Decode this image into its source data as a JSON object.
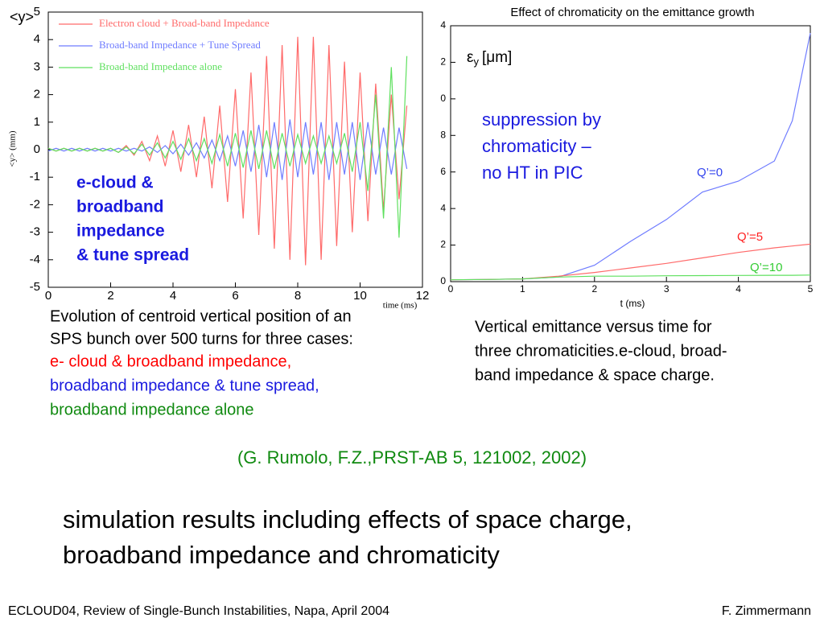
{
  "chart_data": [
    {
      "type": "line",
      "corner_label": "<y>",
      "ylabel": "<y> (mm)",
      "xlabel": "time (ms)",
      "xlim": [
        0,
        12
      ],
      "xticks": [
        0,
        2,
        4,
        6,
        8,
        10,
        12
      ],
      "ylim": [
        -5,
        5
      ],
      "yticks": [
        -5,
        -4,
        -3,
        -2,
        -1,
        0,
        1,
        2,
        3,
        4,
        5
      ],
      "legend": "top-left",
      "x": [
        0,
        0.25,
        0.5,
        0.75,
        1,
        1.25,
        1.5,
        1.75,
        2,
        2.25,
        2.5,
        2.75,
        3,
        3.25,
        3.5,
        3.75,
        4,
        4.25,
        4.5,
        4.75,
        5,
        5.25,
        5.5,
        5.75,
        6,
        6.25,
        6.5,
        6.75,
        7,
        7.25,
        7.5,
        7.75,
        8,
        8.25,
        8.5,
        8.75,
        9,
        9.25,
        9.5,
        9.75,
        10,
        10.25,
        10.5,
        10.75,
        11,
        11.25,
        11.5
      ],
      "series": [
        {
          "name": "Electron cloud + Broad-band Impedance",
          "color": "#ff6a6a",
          "values": [
            0.05,
            -0.05,
            0.05,
            -0.05,
            0.05,
            -0.05,
            0.05,
            -0.05,
            0.05,
            -0.1,
            0.15,
            -0.2,
            0.3,
            -0.4,
            0.5,
            -0.6,
            0.7,
            -0.8,
            0.9,
            -1.0,
            1.2,
            -1.4,
            1.6,
            -1.9,
            2.2,
            -2.5,
            2.8,
            -3.1,
            3.4,
            -3.6,
            3.8,
            -4.0,
            4.1,
            -4.2,
            4.1,
            -4.0,
            3.8,
            -3.5,
            3.2,
            -3.0,
            2.8,
            -2.6,
            2.4,
            -2.2,
            2.0,
            -1.8,
            1.6
          ]
        },
        {
          "name": "Broad-band Impedance + Tune Spread",
          "color": "#6f7cff",
          "values": [
            -0.05,
            0.05,
            -0.05,
            0.05,
            -0.05,
            0.05,
            -0.05,
            0.05,
            -0.05,
            0.05,
            -0.05,
            0.05,
            -0.05,
            0.1,
            -0.1,
            0.15,
            -0.15,
            0.2,
            -0.2,
            0.25,
            -0.3,
            0.35,
            -0.4,
            0.5,
            -0.6,
            0.7,
            -0.8,
            0.9,
            -1.0,
            1.0,
            -1.1,
            1.1,
            -1.0,
            1.0,
            -0.9,
            1.0,
            -1.1,
            1.0,
            -0.9,
            1.0,
            -1.1,
            1.0,
            -0.9,
            0.8,
            -0.9,
            0.8,
            -0.7
          ]
        },
        {
          "name": "Broad-band Impedance alone",
          "color": "#5fe05f",
          "values": [
            0.05,
            -0.05,
            0.05,
            -0.05,
            0.05,
            -0.05,
            0.05,
            -0.05,
            0.05,
            -0.1,
            0.1,
            -0.15,
            0.2,
            -0.2,
            0.25,
            -0.3,
            0.3,
            -0.35,
            0.4,
            -0.4,
            0.4,
            -0.5,
            0.55,
            -0.6,
            0.6,
            -0.65,
            0.7,
            -0.7,
            0.7,
            -0.7,
            0.6,
            -0.6,
            0.55,
            -0.5,
            0.5,
            -0.5,
            0.5,
            -0.5,
            0.6,
            -0.8,
            1.0,
            -1.5,
            2.0,
            -2.5,
            3.0,
            -3.2,
            3.4
          ]
        }
      ],
      "annotation": [
        "e-cloud &",
        "broadband",
        "impedance",
        "& tune spread"
      ]
    },
    {
      "type": "line",
      "title": "Effect of chromaticity on the emittance growth",
      "xlabel": "t (ms)",
      "ylabel_symbol": "ε",
      "ylabel_subscript": "y",
      "ylabel_unit": "[μm]",
      "xlim": [
        0,
        5
      ],
      "xticks": [
        0,
        1,
        2,
        3,
        4,
        5
      ],
      "ylim": [
        0,
        14
      ],
      "yticks": [
        0,
        2,
        4,
        6,
        8,
        {
          "value": 10,
          "label": "0"
        },
        {
          "value": 12,
          "label": "2"
        },
        {
          "value": 14,
          "label": "4"
        }
      ],
      "x": [
        0,
        0.5,
        1,
        1.5,
        2,
        2.5,
        3,
        3.5,
        4,
        4.5,
        4.75,
        5
      ],
      "series": [
        {
          "name": "Q’=0",
          "color": "#6f7cff",
          "values": [
            0.1,
            0.12,
            0.15,
            0.25,
            0.9,
            2.2,
            3.4,
            4.9,
            5.5,
            6.6,
            8.8,
            13.6
          ]
        },
        {
          "name": "Q’=5",
          "color": "#ff6a6a",
          "values": [
            0.1,
            0.12,
            0.15,
            0.3,
            0.5,
            0.75,
            1.0,
            1.3,
            1.6,
            1.85,
            1.95,
            2.05
          ]
        },
        {
          "name": "Q’=10",
          "color": "#5fe05f",
          "values": [
            0.1,
            0.12,
            0.15,
            0.25,
            0.3,
            0.3,
            0.32,
            0.33,
            0.34,
            0.35,
            0.35,
            0.36
          ]
        }
      ],
      "annotation": [
        "suppression by",
        "chromaticity –",
        "no HT in PIC"
      ]
    }
  ],
  "caption_left": [
    "Evolution of centroid vertical position of an",
    "SPS bunch over 500 turns for three cases:",
    "e- cloud & broadband impedance,",
    "broadband impedance & tune spread,",
    "broadband impedance alone"
  ],
  "caption_right": [
    "Vertical emittance versus time for",
    "three chromaticities.e-cloud,  broad-",
    "band impedance & space charge."
  ],
  "citation": "(G. Rumolo, F.Z.,PRST-AB 5, 121002, 2002)",
  "headline": [
    "simulation results including effects of space charge,",
    "broadband impedance and chromaticity"
  ],
  "footer": {
    "left": "ECLOUD04, Review of Single-Bunch Instabilities, Napa, April 2004",
    "right": "F. Zimmermann"
  }
}
